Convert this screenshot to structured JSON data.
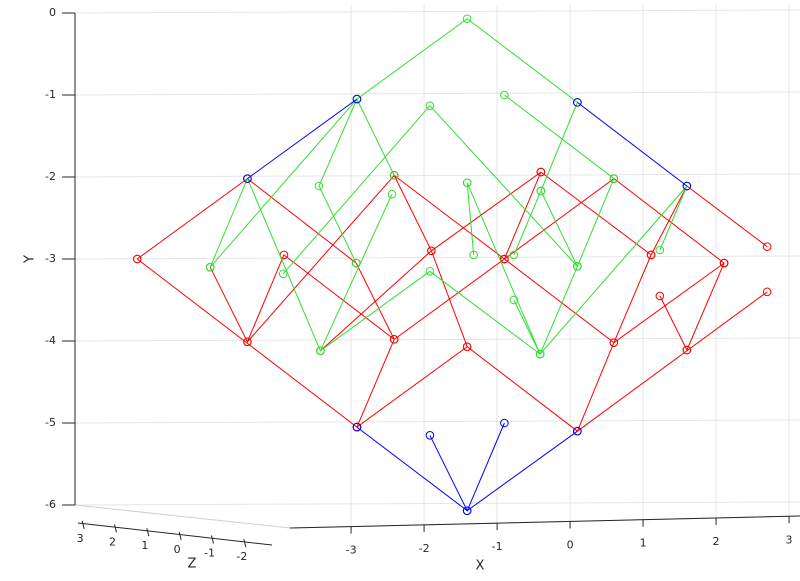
{
  "chart_data": {
    "type": "line3d",
    "xlabel": "X",
    "ylabel": "Y",
    "zlabel": "Z",
    "xlim": [
      -7.81,
      3.15
    ],
    "xticks": [
      -3,
      -2,
      -1,
      0,
      1,
      2,
      3
    ],
    "ylim": [
      -6,
      0
    ],
    "yticks": [
      0,
      -1,
      -2,
      -3,
      -4,
      -5,
      -6
    ],
    "zlim": [
      -2.5,
      3.5
    ],
    "zticks": [
      3,
      2,
      1,
      0,
      -1,
      -2
    ],
    "grid": true,
    "series": [
      {
        "color": "#ff0000",
        "x": [
          -5.93,
          -4.42,
          null,
          -5.93,
          -2.92,
          -1.41,
          0.1,
          2.7,
          null,
          -4.42,
          -2.41,
          -0.9,
          0.6,
          2.11,
          null,
          -4.93,
          -4.42,
          -3.92,
          -2.41,
          -0.9,
          -0.4,
          1.11,
          null,
          -4.42,
          -2.93,
          -2.41,
          -2.92,
          null,
          -3.42,
          -1.9,
          -0.4,
          null,
          -0.9,
          0.6,
          2.11,
          null,
          0.1,
          0.6,
          1.11,
          1.6,
          2.7,
          null,
          1.23,
          1.6,
          null,
          2.11,
          1.6,
          null,
          -2.41,
          -1.9,
          -1.41
        ],
        "y": [
          -3.0,
          -2.02,
          null,
          -3.0,
          -5.05,
          -4.07,
          -5.1,
          -3.4,
          null,
          -4.01,
          -1.98,
          -3.0,
          -2.02,
          -3.05,
          null,
          -3.1,
          -4.01,
          -2.95,
          -3.98,
          -3.0,
          -1.94,
          -2.95,
          null,
          -2.02,
          -3.05,
          -3.98,
          -5.05,
          null,
          -4.12,
          -2.9,
          -1.94,
          null,
          -3.0,
          -4.02,
          -3.05,
          null,
          -5.1,
          -4.02,
          -2.95,
          -2.11,
          -2.85,
          null,
          -3.45,
          -4.11,
          null,
          -3.05,
          -4.11,
          null,
          -1.98,
          -2.9,
          -4.07
        ]
      },
      {
        "color": "#33dd33",
        "x": [
          -4.93,
          -2.92,
          -1.41,
          0.1,
          null,
          -4.93,
          -4.42,
          -3.42,
          -1.92,
          -0.41,
          0.1,
          0.6,
          null,
          -3.93,
          -1.92,
          0.1,
          null,
          -3.42,
          -2.44,
          null,
          -2.93,
          -3.44,
          -2.92,
          -2.41,
          null,
          -1.41,
          -0.41,
          1.6,
          null,
          -0.9,
          0.6,
          0.1,
          null,
          0.1,
          -0.4,
          0.1,
          null,
          -1.41,
          -1.32,
          null,
          -0.77,
          -0.4,
          null,
          -0.77,
          -0.41,
          null,
          1.23,
          1.6
        ],
        "y": [
          -3.1,
          -1.05,
          -0.07,
          -1.09,
          null,
          -3.1,
          -2.02,
          -4.12,
          -3.15,
          -4.16,
          -3.09,
          -2.02,
          null,
          -3.18,
          -1.13,
          -3.09,
          null,
          -4.12,
          -2.21,
          null,
          -3.05,
          -2.11,
          -1.05,
          -1.98,
          null,
          -2.07,
          -4.16,
          -2.11,
          null,
          -1.0,
          -2.02,
          -3.09,
          null,
          -1.09,
          -2.17,
          -3.09,
          null,
          -2.07,
          -2.95,
          null,
          -2.95,
          -2.17,
          null,
          -3.5,
          -4.16,
          null,
          -2.89,
          -2.11
        ]
      },
      {
        "color": "#0000ff",
        "x": [
          -4.42,
          -2.92,
          null,
          0.1,
          1.6,
          null,
          -2.92,
          -1.41,
          0.1,
          null,
          -1.92,
          -1.41,
          -0.9
        ],
        "y": [
          -2.02,
          -1.05,
          null,
          -1.09,
          -2.11,
          null,
          -5.05,
          -6.07,
          -5.1,
          null,
          -5.15,
          -6.07,
          -5.0
        ]
      }
    ]
  }
}
